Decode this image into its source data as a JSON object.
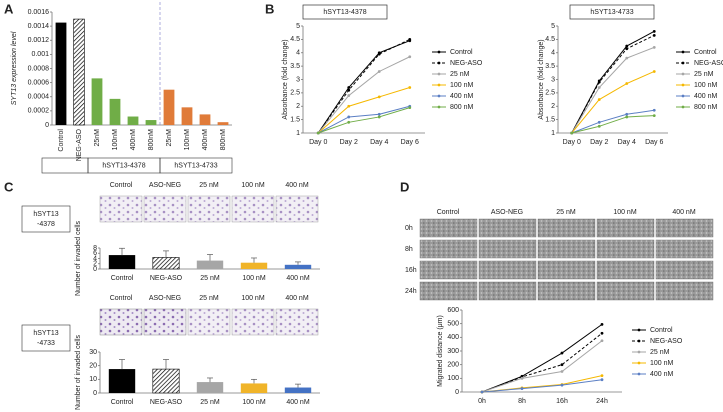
{
  "panel_labels": [
    "A",
    "B",
    "C",
    "D"
  ],
  "chart_data": [
    {
      "type": "bar",
      "ylabel": "SYT13 expression level",
      "categories": [
        "Control",
        "NEG-ASO",
        "25nM",
        "100nM",
        "400nM",
        "800nM",
        "25nM",
        "100nM",
        "400nM",
        "800nM"
      ],
      "values": [
        0.00145,
        0.0015,
        0.00066,
        0.00037,
        0.00012,
        7e-05,
        0.0005,
        0.00025,
        0.00015,
        4e-05
      ],
      "colors": [
        "#000000",
        "#000000",
        "#70ad47",
        "#70ad47",
        "#70ad47",
        "#70ad47",
        "#e07b39",
        "#e07b39",
        "#e07b39",
        "#e07b39"
      ],
      "hatched": [
        false,
        true,
        false,
        false,
        false,
        false,
        false,
        false,
        false,
        false
      ],
      "ylim": [
        0,
        0.0016
      ],
      "yticks": [
        0,
        0.0002,
        0.0004,
        0.0006,
        0.0008,
        0.001,
        0.0012,
        0.0014,
        0.0016
      ],
      "groups": [
        "hSYT13-4378",
        "hSYT13-4733"
      ]
    },
    {
      "type": "line",
      "title": "hSYT13-4378",
      "ylabel": "Absorbance (fold change)",
      "categories": [
        "Day 0",
        "Day 2",
        "Day 4",
        "Day 6"
      ],
      "series": [
        {
          "name": "Control",
          "color": "#000000",
          "dashed": false,
          "values": [
            1,
            2.7,
            4.0,
            4.45
          ]
        },
        {
          "name": "NEG-ASO",
          "color": "#000000",
          "dashed": true,
          "values": [
            1,
            2.6,
            3.95,
            4.5
          ]
        },
        {
          "name": "25 nM",
          "color": "#a6a6a6",
          "dashed": false,
          "values": [
            1,
            2.4,
            3.3,
            3.85
          ]
        },
        {
          "name": "100 nM",
          "color": "#f5b800",
          "dashed": false,
          "values": [
            1,
            2.0,
            2.35,
            2.7
          ]
        },
        {
          "name": "400 nM",
          "color": "#5b7fc4",
          "dashed": false,
          "values": [
            1,
            1.6,
            1.7,
            2.0
          ]
        },
        {
          "name": "800 nM",
          "color": "#70ad47",
          "dashed": false,
          "values": [
            1,
            1.4,
            1.6,
            1.95
          ]
        }
      ],
      "ylim": [
        1,
        5
      ],
      "yticks": [
        1,
        1.5,
        2,
        2.5,
        3,
        3.5,
        4,
        4.5,
        5
      ]
    },
    {
      "type": "line",
      "title": "hSYT13-4733",
      "ylabel": "Absorbance (fold change)",
      "categories": [
        "Day 0",
        "Day 2",
        "Day 4",
        "Day 6"
      ],
      "series": [
        {
          "name": "Control",
          "color": "#000000",
          "dashed": false,
          "values": [
            1,
            2.95,
            4.25,
            4.8
          ]
        },
        {
          "name": "NEG-ASO",
          "color": "#000000",
          "dashed": true,
          "values": [
            1,
            2.9,
            4.15,
            4.65
          ]
        },
        {
          "name": "25 nM",
          "color": "#a6a6a6",
          "dashed": false,
          "values": [
            1,
            2.7,
            3.8,
            4.2
          ]
        },
        {
          "name": "100 nM",
          "color": "#f5b800",
          "dashed": false,
          "values": [
            1,
            2.25,
            2.85,
            3.3
          ]
        },
        {
          "name": "400 nM",
          "color": "#5b7fc4",
          "dashed": false,
          "values": [
            1,
            1.4,
            1.7,
            1.85
          ]
        },
        {
          "name": "800 nM",
          "color": "#70ad47",
          "dashed": false,
          "values": [
            1,
            1.25,
            1.6,
            1.65
          ]
        }
      ],
      "ylim": [
        1,
        5
      ],
      "yticks": [
        1,
        1.5,
        2,
        2.5,
        3,
        3.5,
        4,
        4.5,
        5
      ]
    },
    {
      "type": "bar",
      "ylabel": "Number of invaded cells",
      "categories": [
        "Control",
        "NEG-ASO",
        "25 nM",
        "100 nM",
        "400 nM"
      ],
      "values": [
        5.3,
        4.4,
        3.2,
        2.4,
        1.6
      ],
      "errors": [
        2.6,
        2.5,
        2.3,
        1.8,
        1.1
      ],
      "colors": [
        "#000000",
        "#000000",
        "#a6a6a6",
        "#f0b429",
        "#4472c4"
      ],
      "hatched": [
        false,
        true,
        false,
        false,
        false
      ],
      "ylim": [
        0,
        8
      ],
      "yticks": [
        0,
        2,
        4,
        6,
        8
      ]
    },
    {
      "type": "bar",
      "ylabel": "Number of invaded cells",
      "categories": [
        "Control",
        "NEG-ASO",
        "25 nM",
        "100 nM",
        "400 nM"
      ],
      "values": [
        17.5,
        17.5,
        8,
        7,
        4
      ],
      "errors": [
        7,
        7,
        3,
        3,
        2.5
      ],
      "colors": [
        "#000000",
        "#000000",
        "#a6a6a6",
        "#f0b429",
        "#4472c4"
      ],
      "hatched": [
        false,
        true,
        false,
        false,
        false
      ],
      "ylim": [
        0,
        30
      ],
      "yticks": [
        0,
        10,
        20,
        30
      ]
    },
    {
      "type": "line",
      "ylabel": "Migrated distance (μm)",
      "categories": [
        "0h",
        "8h",
        "16h",
        "24h"
      ],
      "series": [
        {
          "name": "Control",
          "color": "#000000",
          "dashed": false,
          "values": [
            0,
            115,
            285,
            495
          ]
        },
        {
          "name": "NEG-ASO",
          "color": "#000000",
          "dashed": true,
          "values": [
            0,
            110,
            200,
            430
          ]
        },
        {
          "name": "25 nM",
          "color": "#a6a6a6",
          "dashed": false,
          "values": [
            0,
            100,
            150,
            375
          ]
        },
        {
          "name": "100 nM",
          "color": "#f5b800",
          "dashed": false,
          "values": [
            0,
            30,
            55,
            120
          ]
        },
        {
          "name": "400 nM",
          "color": "#5b7fc4",
          "dashed": false,
          "values": [
            0,
            25,
            50,
            90
          ]
        }
      ],
      "ylim": [
        0,
        600
      ],
      "yticks": [
        0,
        100,
        200,
        300,
        400,
        500,
        600
      ]
    }
  ],
  "panel_c": {
    "headers": [
      "Control",
      "ASO-NEG",
      "25 nM",
      "100 nM",
      "400 nM"
    ],
    "cell_lines": [
      [
        "hSYT13",
        "-4378"
      ],
      [
        "hSYT13",
        "-4733"
      ]
    ]
  },
  "panel_d": {
    "headers": [
      "Control",
      "ASO-NEG",
      "25 nM",
      "100 nM",
      "400 nM"
    ],
    "rows": [
      "0h",
      "8h",
      "16h",
      "24h"
    ]
  }
}
